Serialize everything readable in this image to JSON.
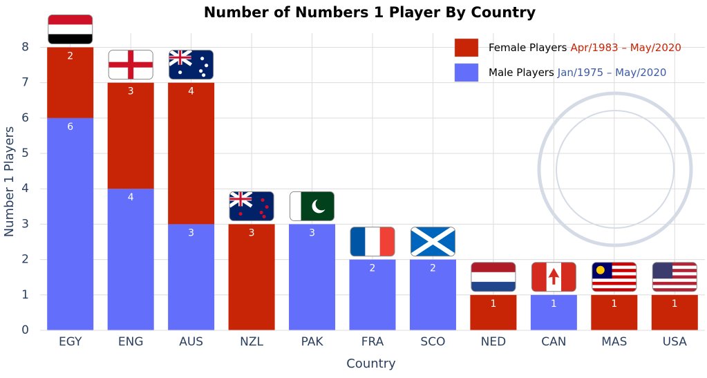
{
  "chart_data": {
    "type": "stacked-bar",
    "title": "Number of Numbers 1 Player By Country",
    "x_label": "Country",
    "y_label": "Number 1 Players",
    "categories": [
      "EGY",
      "ENG",
      "AUS",
      "NZL",
      "PAK",
      "FRA",
      "SCO",
      "NED",
      "CAN",
      "MAS",
      "USA"
    ],
    "series": [
      {
        "name": "Female Players",
        "period": "Apr/1983 – May/2020",
        "color": "#c82406",
        "period_color": "#c82406",
        "values": [
          2,
          3,
          4,
          3,
          null,
          null,
          null,
          1,
          null,
          1,
          1
        ]
      },
      {
        "name": "Male Players",
        "period": "Jan/1975 – May/2020",
        "color": "#636efa",
        "period_color": "#3c5aa8",
        "values": [
          6,
          4,
          3,
          null,
          3,
          2,
          2,
          null,
          1,
          null,
          null
        ]
      }
    ],
    "ylim": [
      0,
      8.4
    ],
    "yticks": [
      0,
      1,
      2,
      3,
      4,
      5,
      6,
      7,
      8
    ],
    "grid": true,
    "legend": "top-right"
  }
}
